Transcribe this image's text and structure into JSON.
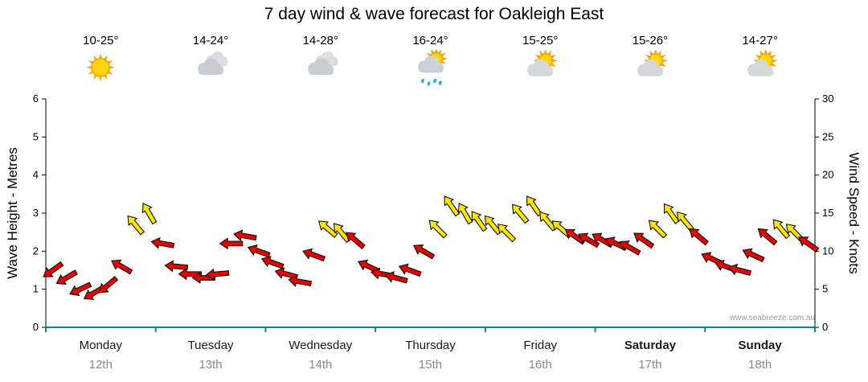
{
  "watermark": "www.seabreeze.com.au",
  "chart_data": {
    "type": "line",
    "title": "7 day wind & wave forecast for Oakleigh East",
    "ylabel_left": "Wave Height - Metres",
    "ylabel_right": "Wind Speed - Knots",
    "ylim_left": [
      0,
      6
    ],
    "ylim_right": [
      0,
      30
    ],
    "left_ticks": [
      0,
      1,
      2,
      3,
      4,
      5,
      6
    ],
    "right_ticks": [
      0,
      5,
      10,
      15,
      20,
      25,
      30
    ],
    "points_per_day": 8,
    "days": [
      {
        "name": "Monday",
        "date": "12th",
        "temp": "10-25°",
        "icon": "sunny",
        "bold": false
      },
      {
        "name": "Tuesday",
        "date": "13th",
        "temp": "14-24°",
        "icon": "cloudy",
        "bold": false
      },
      {
        "name": "Wednesday",
        "date": "14th",
        "temp": "14-28°",
        "icon": "cloudy",
        "bold": false
      },
      {
        "name": "Thursday",
        "date": "15th",
        "temp": "16-24°",
        "icon": "sun-cloud-rain",
        "bold": false
      },
      {
        "name": "Friday",
        "date": "16th",
        "temp": "15-25°",
        "icon": "partly-cloudy",
        "bold": false
      },
      {
        "name": "Saturday",
        "date": "17th",
        "temp": "15-26°",
        "icon": "partly-cloudy",
        "bold": true
      },
      {
        "name": "Sunday",
        "date": "18th",
        "temp": "14-27°",
        "icon": "partly-cloudy",
        "bold": true
      }
    ],
    "wind": {
      "units": "knots",
      "yellow_threshold_knots": 12.5,
      "knots": [
        7.5,
        6.5,
        5,
        4.5,
        5.5,
        8,
        13.5,
        15,
        11,
        8,
        7,
        6.5,
        7,
        11,
        12,
        10,
        8.5,
        7,
        6,
        9.5,
        13,
        12.5,
        11.5,
        8,
        7,
        6.5,
        7.5,
        10,
        13,
        16,
        15,
        14,
        13.5,
        12.5,
        15,
        16,
        14,
        13,
        12,
        11.5,
        11.5,
        11,
        10.5,
        11.5,
        13,
        15,
        14,
        12,
        9,
        8,
        7.5,
        9.5,
        12,
        13,
        12.5,
        11
      ],
      "directions_deg": [
        235,
        240,
        245,
        240,
        230,
        300,
        320,
        330,
        280,
        275,
        270,
        270,
        265,
        270,
        280,
        290,
        290,
        285,
        280,
        290,
        310,
        320,
        310,
        295,
        280,
        285,
        290,
        300,
        315,
        325,
        330,
        325,
        320,
        315,
        320,
        325,
        320,
        310,
        305,
        300,
        300,
        295,
        300,
        305,
        315,
        325,
        320,
        310,
        295,
        290,
        285,
        295,
        310,
        320,
        315,
        305
      ]
    },
    "colors": {
      "light_wind_arrow": "#e60000",
      "strong_wind_arrow": "#ffe600",
      "arrow_outline": "#111111",
      "x_axis": "#008b8b",
      "date_text": "#8a8a8a"
    }
  }
}
